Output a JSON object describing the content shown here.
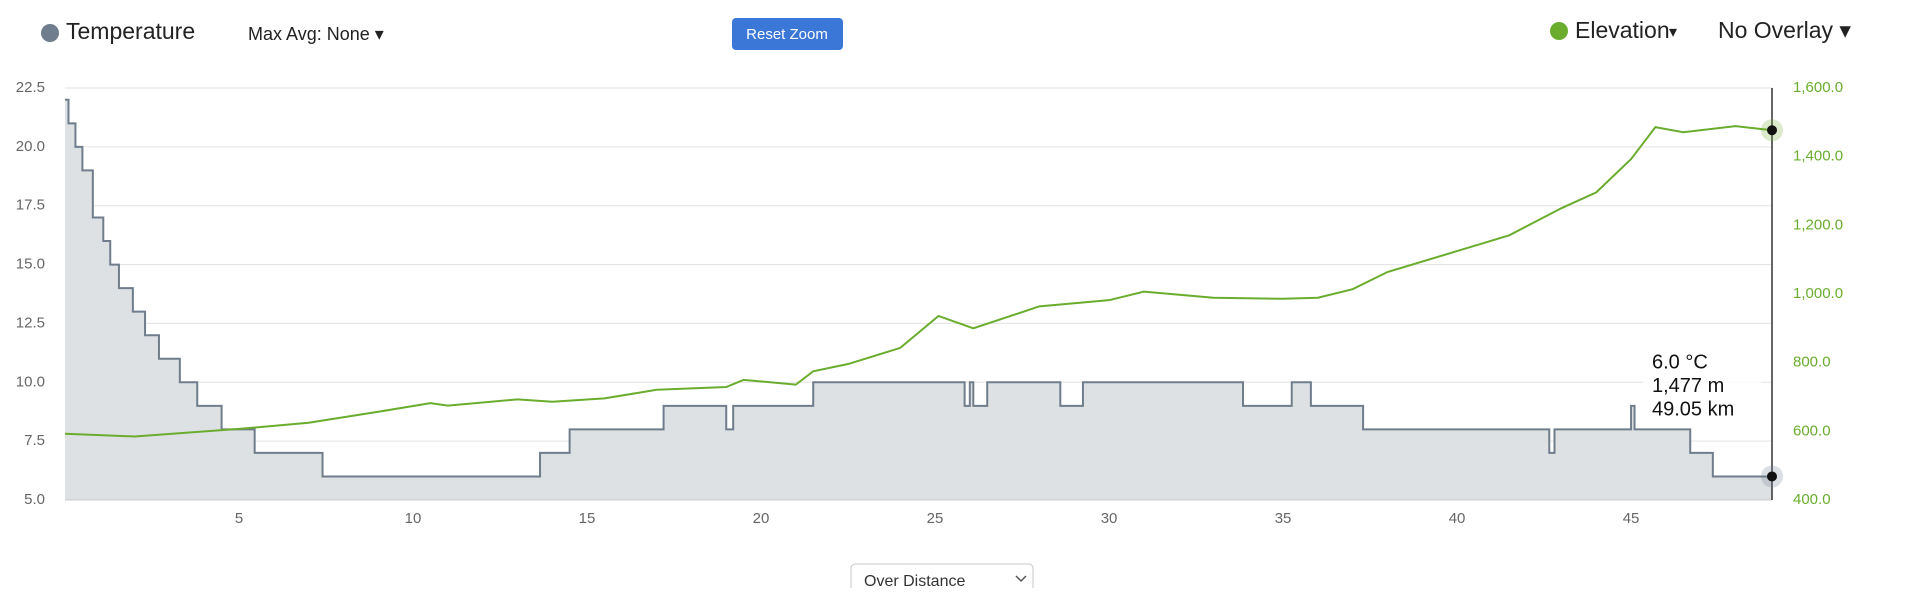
{
  "chart_data": {
    "type": "line",
    "controls": {
      "max_avg": "Max Avg: None ▾",
      "reset_zoom": "Reset Zoom",
      "elevation_menu": "▾",
      "overlay": "No Overlay ▾",
      "mode": "Over Distance"
    },
    "xlim": [
      0,
      49.05
    ],
    "xticks": [
      5,
      10,
      15,
      20,
      25,
      30,
      35,
      40,
      45
    ],
    "ylim": [
      5,
      22.5
    ],
    "yticks": [
      {
        "value": 5,
        "label": "5.0"
      },
      7.5,
      {
        "value": 10,
        "label": "10.0"
      },
      12.5,
      {
        "value": 15,
        "label": "15.0"
      },
      17.5,
      {
        "value": 20,
        "label": "20.0"
      },
      22.5
    ],
    "y2lim": [
      400,
      1600
    ],
    "y2ticks": [
      {
        "value": 400,
        "label": "400.0"
      },
      {
        "value": 600,
        "label": "600.0"
      },
      {
        "value": 800,
        "label": "800.0"
      },
      {
        "value": 1000,
        "label": "1,000.0"
      },
      {
        "value": 1200,
        "label": "1,200.0"
      },
      {
        "value": 1400,
        "label": "1,400.0"
      },
      {
        "value": 1600,
        "label": "1,600.0"
      }
    ],
    "grid": true,
    "series": [
      {
        "name": "Temperature",
        "color": "#6f7d8c",
        "step": true,
        "area": true,
        "x": [
          0,
          0.1,
          0.3,
          0.5,
          0.8,
          1.1,
          1.3,
          1.55,
          1.95,
          2.3,
          2.7,
          3.3,
          3.8,
          4.5,
          5.45,
          7.4,
          13.65,
          14.5,
          17.2,
          19,
          19.2,
          21.5,
          25.85,
          26,
          26.1,
          26.5,
          28.6,
          29.25,
          33.85,
          35.25,
          35.8,
          37.3,
          42.65,
          42.8,
          45,
          45.1,
          46.7,
          47.35,
          49.05
        ],
        "values": [
          22,
          21,
          20,
          19,
          17,
          16,
          15,
          14,
          13,
          12,
          11,
          10,
          9,
          8,
          7,
          6,
          7,
          8,
          9,
          8,
          9,
          10,
          9,
          10,
          9,
          10,
          9,
          10,
          9,
          10,
          9,
          8,
          7,
          8,
          9,
          8,
          7,
          6,
          6
        ]
      },
      {
        "name": "Elevation",
        "color": "#6aad2e",
        "axis": "y2",
        "x": [
          0,
          2,
          5,
          7,
          9,
          10.5,
          11,
          13,
          14,
          15.5,
          17,
          19,
          19.5,
          21,
          21.5,
          22.5,
          24,
          25.1,
          26.1,
          28,
          30,
          31,
          33,
          35,
          36,
          37,
          38,
          40,
          41.5,
          43,
          44,
          45,
          45.7,
          46.5,
          48,
          49.05
        ],
        "values": [
          593,
          585,
          607,
          625,
          657,
          682,
          675,
          693,
          686,
          696,
          721,
          729,
          750,
          736,
          775,
          796,
          843,
          936,
          900,
          964,
          982,
          1007,
          989,
          986,
          989,
          1014,
          1064,
          1125,
          1171,
          1250,
          1296,
          1393,
          1486,
          1471,
          1489,
          1477
        ]
      }
    ],
    "tooltip": [
      "6.0 °C",
      "1,477 m",
      "49.05 km"
    ]
  }
}
